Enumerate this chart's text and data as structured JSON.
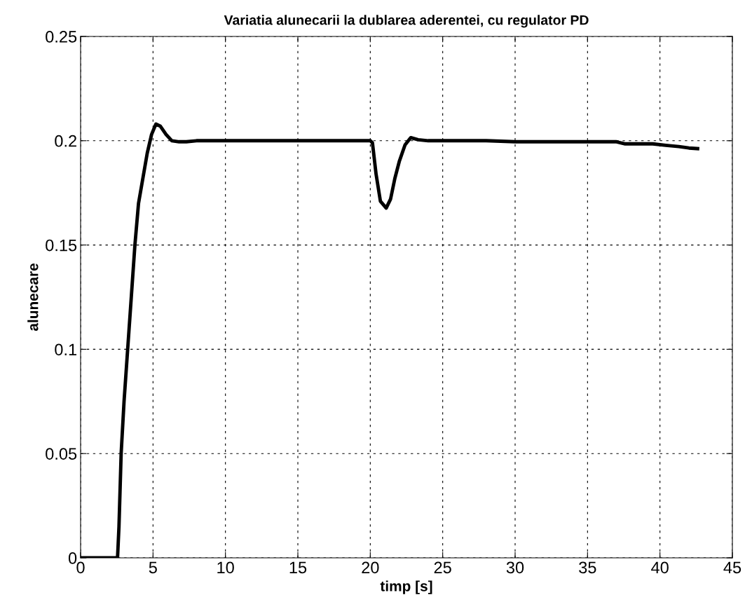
{
  "chart_data": {
    "type": "line",
    "title": "Variatia alunecarii la dublarea aderentei, cu regulator PD",
    "xlabel": "timp [s]",
    "ylabel": "alunecare",
    "series": [
      {
        "color": "#000000",
        "x": [
          0,
          2.55,
          2.65,
          2.8,
          3.0,
          3.25,
          3.5,
          3.75,
          4.0,
          4.3,
          4.6,
          4.9,
          5.2,
          5.5,
          5.9,
          6.3,
          6.8,
          7.3,
          8.0,
          10,
          15,
          20,
          20.15,
          20.4,
          20.7,
          21.1,
          21.4,
          21.7,
          22.0,
          22.4,
          22.8,
          23.3,
          24,
          26,
          28,
          30,
          33,
          37,
          37.6,
          38.5,
          39.5,
          40.4,
          41.3,
          42,
          42.6
        ],
        "values": [
          0,
          0,
          0.015,
          0.05,
          0.075,
          0.1,
          0.125,
          0.15,
          0.17,
          0.182,
          0.194,
          0.203,
          0.208,
          0.207,
          0.203,
          0.2,
          0.1995,
          0.1995,
          0.2,
          0.2,
          0.2,
          0.2,
          0.199,
          0.184,
          0.171,
          0.1677,
          0.172,
          0.182,
          0.19,
          0.198,
          0.2015,
          0.2005,
          0.2,
          0.2,
          0.2,
          0.1995,
          0.1995,
          0.1995,
          0.1985,
          0.1985,
          0.1985,
          0.1978,
          0.1972,
          0.1965,
          0.1962
        ]
      }
    ],
    "xlim": [
      0,
      45
    ],
    "xticks": [
      0,
      5,
      10,
      15,
      20,
      25,
      30,
      35,
      40,
      45
    ],
    "ylim": [
      0,
      0.25
    ],
    "yticks": [
      0,
      0.05,
      0.1,
      0.15,
      0.2,
      0.25
    ],
    "grid": true,
    "line_style": "solid",
    "marker": "none"
  }
}
